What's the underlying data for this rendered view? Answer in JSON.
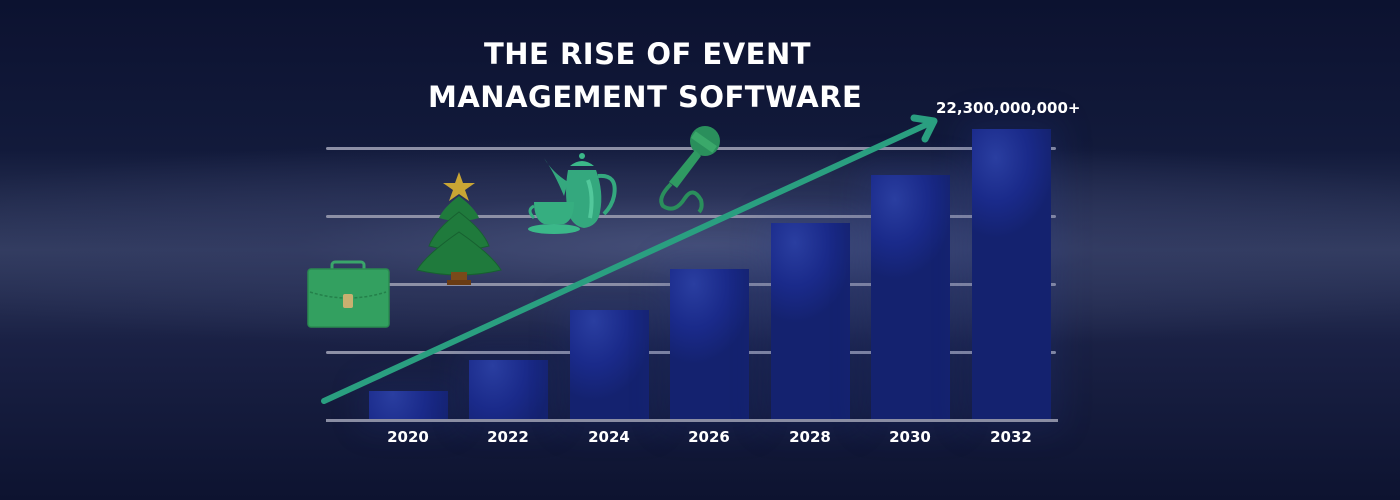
{
  "title": {
    "line1": "THE RISE OF EVENT",
    "line2": "MANAGEMENT SOFTWARE"
  },
  "peak_annotation": "22,300,000,000+",
  "icons": [
    "briefcase-icon",
    "christmas-tree-icon",
    "teapot-and-cup-icon",
    "microphone-icon"
  ],
  "colors": {
    "background_dark": "#0c1230",
    "background_band": "#353f62",
    "bar": "#1a2a8a",
    "trend_arrow": "#2a9f80",
    "gridline": "#8d90a6",
    "text": "#ffffff"
  },
  "chart_data": {
    "type": "bar",
    "title": "THE RISE OF EVENT MANAGEMENT SOFTWARE",
    "xlabel": "",
    "ylabel": "",
    "categories": [
      "2020",
      "2022",
      "2024",
      "2026",
      "2028",
      "2030",
      "2032"
    ],
    "values": [
      2.2,
      4.6,
      8.4,
      11.6,
      15.1,
      18.8,
      22.3
    ],
    "value_unit": "billions (estimated from bar heights; only 2032 labeled)",
    "annotations": [
      {
        "category": "2032",
        "text": "22,300,000,000+"
      }
    ],
    "trend_arrow": {
      "from": "2020",
      "to": "2032",
      "direction": "up"
    },
    "ylim": [
      0,
      22.3
    ],
    "grid": true,
    "gridlines": 4,
    "legend": null
  }
}
